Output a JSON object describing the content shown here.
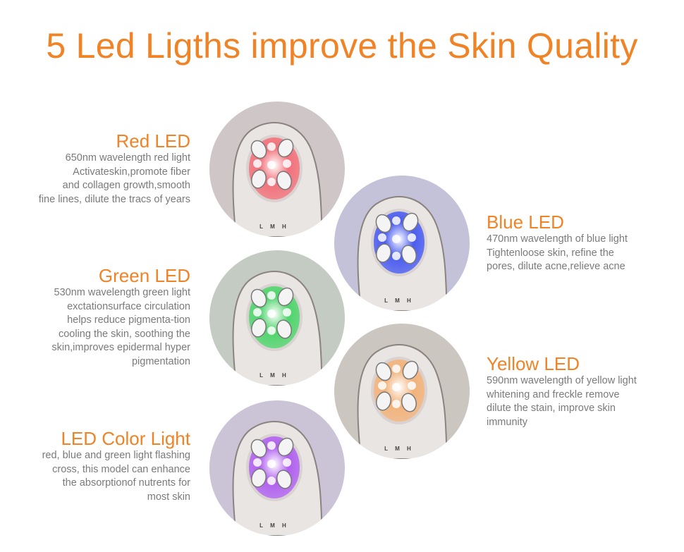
{
  "title": "5 Led Ligths improve the Skin Quality",
  "device_label": "L M H",
  "items": [
    {
      "heading": "Red LED",
      "text": "650nm wavelength red light\nActivateskin,promote fiber\nand collagen growth,smooth\nfine lines, dilute the tracs of years",
      "color": "#f2707a",
      "bg": "#cfc6c8"
    },
    {
      "heading": "Blue LED",
      "text": "470nm wavelength of blue light\nTightenloose skin, refine the\npores, dilute acne,relieve acne",
      "color": "#4a5cf0",
      "bg": "#c3c2d8"
    },
    {
      "heading": "Green LED",
      "text": "530nm wavelength green light\nexctationsurface circulation\nhelps reduce pigmenta-tion\ncooling the skin, soothing the\nskin,improves epidermal hyper\npigmentation",
      "color": "#4fd46c",
      "bg": "#c4cbc3"
    },
    {
      "heading": "Yellow LED",
      "text": "590nm wavelength of yellow light\nwhitening and freckle remove\ndilute the stain, improve skin\nimmunity",
      "color": "#f2b27a",
      "bg": "#ccc6c0"
    },
    {
      "heading": "LED Color Light",
      "text": "red, blue and green light flashing\ncross, this model can enhance\nthe absorptionof nutrents for\nmost skin",
      "color": "#b060f0",
      "bg": "#cbc3d6"
    }
  ]
}
